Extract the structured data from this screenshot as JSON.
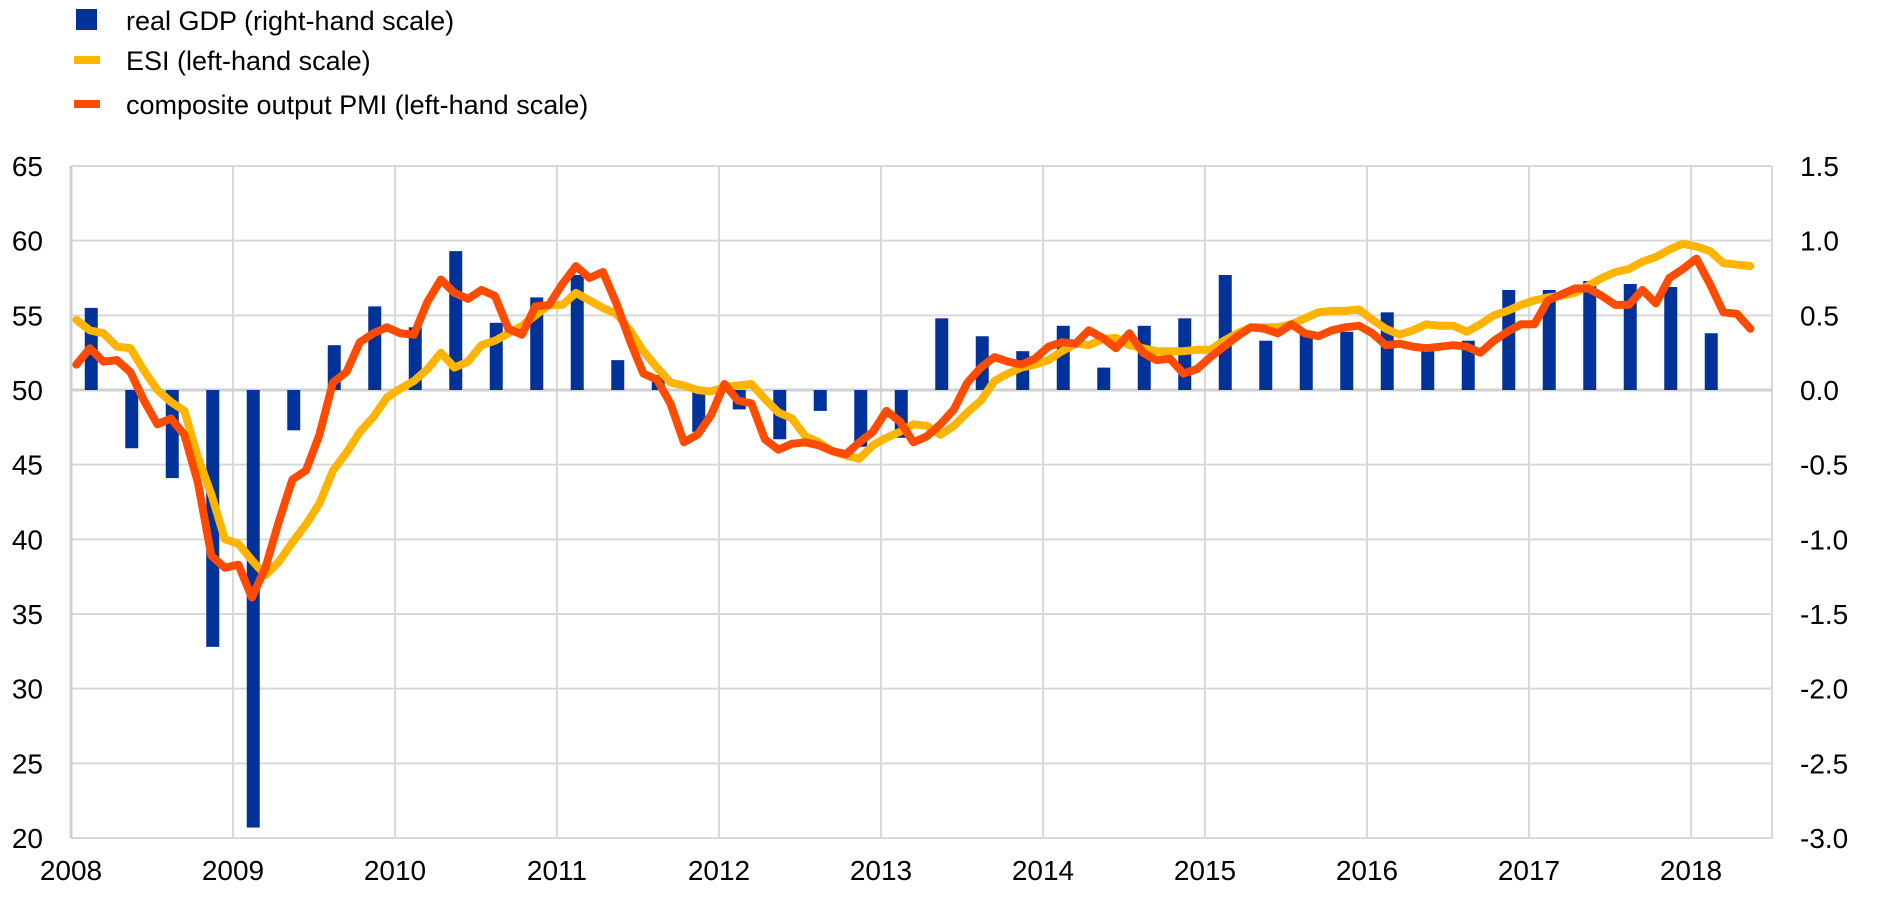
{
  "colors": {
    "gdp": "#003299",
    "esi": "#FFB400",
    "pmi": "#FF4B00",
    "grid": "#D9D9D9"
  },
  "chart_data": {
    "type": "bar+line",
    "title": "",
    "legend": [
      {
        "key": "gdp",
        "label": "real GDP (right-hand scale)",
        "marker": "square"
      },
      {
        "key": "esi",
        "label": "ESI (left-hand scale)",
        "marker": "line"
      },
      {
        "key": "pmi",
        "label": "composite output PMI (left-hand scale)",
        "marker": "line"
      }
    ],
    "legend_placement": "top-left",
    "x_ticks": [
      "2008",
      "2009",
      "2010",
      "2011",
      "2012",
      "2013",
      "2014",
      "2015",
      "2016",
      "2017",
      "2018"
    ],
    "xlim": [
      2008,
      2018.5
    ],
    "left_axis": {
      "ylim": [
        20,
        65
      ],
      "ticks": [
        "20",
        "25",
        "30",
        "35",
        "40",
        "45",
        "50",
        "55",
        "60",
        "65"
      ]
    },
    "right_axis": {
      "ylim": [
        -3.0,
        1.5
      ],
      "ticks": [
        "-3.0",
        "-2.5",
        "-2.0",
        "-1.5",
        "-1.0",
        "-0.5",
        "0.0",
        "0.5",
        "1.0",
        "1.5"
      ]
    },
    "grid": true,
    "gdp_quarterly": {
      "start": "2008Q1",
      "values": [
        0.55,
        -0.39,
        -0.59,
        -1.72,
        -2.93,
        -0.27,
        0.3,
        0.56,
        0.42,
        0.93,
        0.45,
        0.62,
        0.77,
        0.2,
        0.1,
        -0.28,
        -0.13,
        -0.33,
        -0.14,
        -0.38,
        -0.32,
        0.48,
        0.36,
        0.26,
        0.43,
        0.15,
        0.43,
        0.48,
        0.77,
        0.33,
        0.38,
        0.39,
        0.52,
        0.3,
        0.33,
        0.67,
        0.67,
        0.73,
        0.71,
        0.69,
        0.38
      ]
    },
    "esi_monthly": {
      "start": "2008-01",
      "values": [
        54.7,
        54.0,
        53.8,
        52.9,
        52.8,
        51.3,
        50.0,
        49.2,
        48.6,
        45.5,
        43.0,
        40.0,
        39.7,
        38.6,
        37.6,
        38.5,
        39.8,
        41.0,
        42.4,
        44.6,
        45.8,
        47.2,
        48.2,
        49.5,
        50.1,
        50.6,
        51.4,
        52.5,
        51.5,
        51.9,
        53.0,
        53.3,
        53.8,
        54.3,
        55.0,
        55.7,
        55.7,
        56.5,
        56.0,
        55.5,
        55.1,
        54.0,
        52.6,
        51.5,
        50.5,
        50.3,
        50.0,
        49.9,
        50.2,
        50.3,
        50.4,
        49.4,
        48.5,
        48.1,
        46.9,
        46.5,
        45.9,
        45.6,
        45.4,
        46.3,
        46.8,
        47.2,
        47.7,
        47.6,
        47.0,
        47.6,
        48.5,
        49.3,
        50.6,
        51.1,
        51.5,
        51.7,
        52.0,
        52.6,
        53.1,
        53.0,
        53.4,
        53.5,
        53.0,
        52.8,
        52.6,
        52.6,
        52.6,
        52.7,
        52.7,
        53.3,
        53.8,
        54.2,
        54.2,
        54.2,
        54.4,
        54.8,
        55.2,
        55.3,
        55.3,
        55.4,
        54.7,
        54.1,
        53.7,
        54.0,
        54.4,
        54.3,
        54.3,
        53.9,
        54.4,
        55.0,
        55.3,
        55.7,
        56.0,
        56.2,
        56.3,
        56.5,
        57.0,
        57.5,
        57.9,
        58.1,
        58.6,
        58.9,
        59.4,
        59.8,
        59.6,
        59.3,
        58.5,
        58.4,
        58.3
      ]
    },
    "pmi_monthly": {
      "start": "2008-01",
      "values": [
        51.7,
        52.8,
        51.9,
        52.0,
        51.2,
        49.3,
        47.7,
        48.1,
        47.0,
        43.8,
        38.9,
        38.1,
        38.3,
        36.1,
        38.1,
        41.2,
        44.0,
        44.6,
        47.0,
        50.5,
        51.2,
        53.2,
        53.8,
        54.2,
        53.8,
        53.7,
        55.9,
        57.4,
        56.5,
        56.1,
        56.7,
        56.3,
        54.1,
        53.7,
        55.6,
        55.7,
        57.1,
        58.3,
        57.5,
        57.9,
        55.8,
        53.3,
        51.1,
        50.7,
        49.1,
        46.5,
        47.0,
        48.3,
        50.4,
        49.3,
        49.1,
        46.7,
        46.0,
        46.4,
        46.5,
        46.3,
        45.9,
        45.7,
        46.5,
        47.2,
        48.6,
        47.9,
        46.5,
        46.9,
        47.7,
        48.7,
        50.5,
        51.5,
        52.2,
        51.9,
        51.7,
        52.1,
        52.9,
        53.2,
        53.1,
        54.0,
        53.5,
        52.8,
        53.8,
        52.5,
        52.0,
        52.1,
        51.1,
        51.4,
        52.2,
        52.9,
        53.6,
        54.2,
        54.1,
        53.8,
        54.4,
        53.8,
        53.6,
        54.0,
        54.2,
        54.3,
        53.8,
        53.0,
        53.1,
        52.9,
        52.8,
        52.9,
        53.0,
        52.9,
        52.5,
        53.3,
        53.9,
        54.4,
        54.4,
        56.0,
        56.4,
        56.8,
        56.8,
        56.3,
        55.7,
        55.7,
        56.7,
        55.8,
        57.5,
        58.1,
        58.8,
        57.1,
        55.2,
        55.1,
        54.1
      ]
    }
  }
}
